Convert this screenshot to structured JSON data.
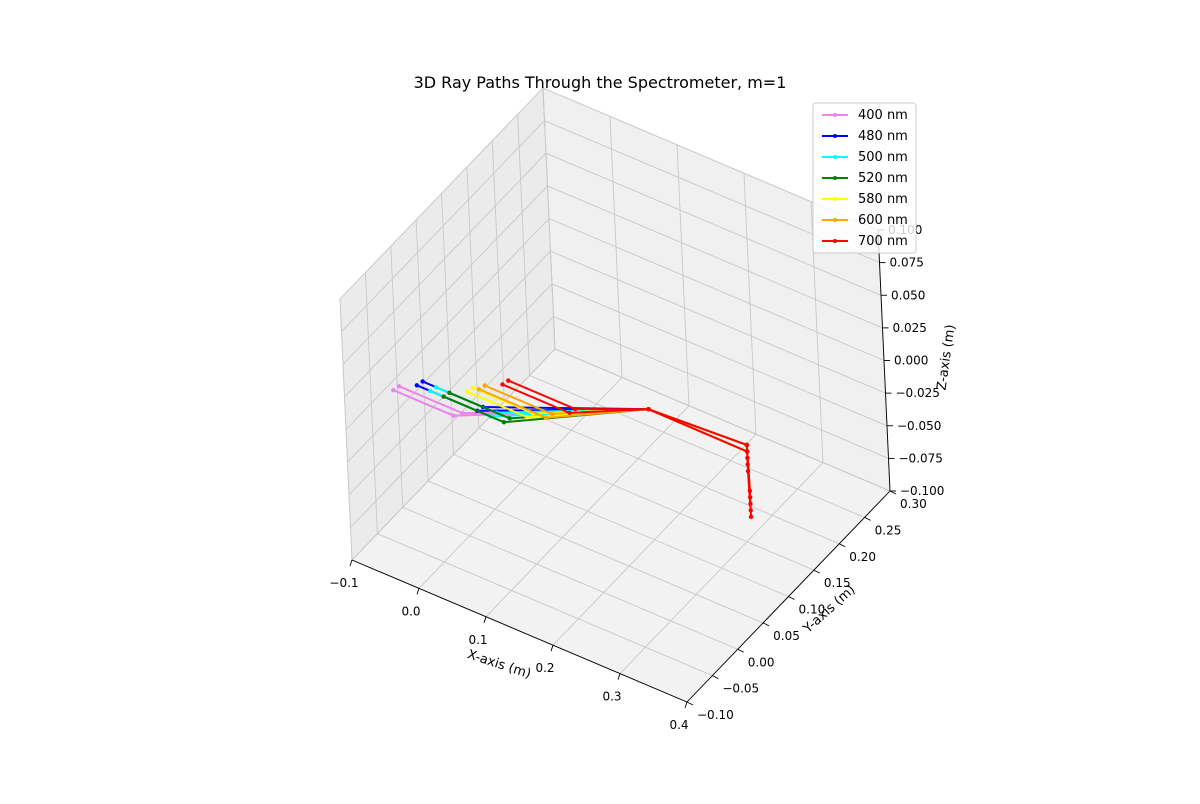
{
  "chart_data": {
    "type": "line",
    "title": "3D Ray Paths Through the Spectrometer, m=1",
    "xlabel": "X-axis (m)",
    "ylabel": "Y-axis (m)",
    "zlabel": "Z-axis (m)",
    "xlim": [
      -0.1,
      0.4
    ],
    "ylim": [
      -0.1,
      0.3
    ],
    "zlim": [
      -0.1,
      0.1
    ],
    "x_ticks": [
      "−0.1",
      "0.0",
      "0.1",
      "0.2",
      "0.3",
      "0.4"
    ],
    "y_ticks": [
      "−0.10",
      "−0.05",
      "0.00",
      "0.05",
      "0.10",
      "0.15",
      "0.20",
      "0.25",
      "0.30"
    ],
    "z_ticks": [
      "−0.100",
      "−0.075",
      "−0.050",
      "−0.025",
      "0.000",
      "0.025",
      "0.050",
      "0.075",
      "0.100"
    ],
    "grid": true,
    "legend_position": "top-right",
    "series": [
      {
        "name": "400 nm",
        "color": "#ee82ee",
        "rays": [
          {
            "x": [
              -0.09,
              0.0,
              0.2,
              0.25
            ],
            "y": [
              -0.02,
              -0.02,
              0.1,
              0.22
            ],
            "z": [
              0.0,
              0.0,
              0.0,
              -0.07
            ]
          },
          {
            "x": [
              -0.085,
              0.01,
              0.2,
              0.25
            ],
            "y": [
              -0.015,
              -0.015,
              0.1,
              0.22
            ],
            "z": [
              0.002,
              0.002,
              0.0,
              -0.065
            ]
          }
        ]
      },
      {
        "name": "480 nm",
        "color": "#0000ff",
        "rays": [
          {
            "x": [
              -0.07,
              0.02,
              0.2,
              0.25
            ],
            "y": [
              0.0,
              0.0,
              0.1,
              0.22
            ],
            "z": [
              0.0,
              0.0,
              0.0,
              -0.07
            ]
          },
          {
            "x": [
              -0.065,
              0.025,
              0.2,
              0.25
            ],
            "y": [
              0.005,
              0.005,
              0.1,
              0.22
            ],
            "z": [
              0.002,
              0.002,
              0.0,
              -0.065
            ]
          }
        ]
      },
      {
        "name": "500 nm",
        "color": "#00ffff",
        "rays": [
          {
            "x": [
              -0.05,
              0.04,
              0.2,
              0.25
            ],
            "y": [
              0.0,
              0.0,
              0.1,
              0.22
            ],
            "z": [
              0.0,
              0.0,
              0.0,
              -0.07
            ]
          },
          {
            "x": [
              -0.045,
              0.045,
              0.2,
              0.25
            ],
            "y": [
              0.005,
              0.005,
              0.1,
              0.22
            ],
            "z": [
              0.002,
              0.002,
              0.0,
              -0.065
            ]
          }
        ]
      },
      {
        "name": "520 nm",
        "color": "#008000",
        "rays": [
          {
            "x": [
              -0.03,
              0.06,
              0.2,
              0.25
            ],
            "y": [
              0.0,
              0.0,
              0.1,
              0.22
            ],
            "z": [
              0.0,
              0.0,
              0.0,
              -0.07
            ]
          },
          {
            "x": [
              -0.025,
              0.065,
              0.2,
              0.25
            ],
            "y": [
              0.005,
              0.005,
              0.1,
              0.22
            ],
            "z": [
              0.002,
              0.002,
              0.0,
              -0.065
            ]
          }
        ]
      },
      {
        "name": "580 nm",
        "color": "#ffff00",
        "rays": [
          {
            "x": [
              -0.01,
              0.08,
              0.2,
              0.25
            ],
            "y": [
              0.02,
              0.02,
              0.1,
              0.22
            ],
            "z": [
              0.0,
              0.0,
              0.0,
              -0.07
            ]
          },
          {
            "x": [
              -0.005,
              0.085,
              0.2,
              0.25
            ],
            "y": [
              0.025,
              0.025,
              0.1,
              0.22
            ],
            "z": [
              0.002,
              0.002,
              0.0,
              -0.065
            ]
          }
        ]
      },
      {
        "name": "600 nm",
        "color": "#ffa500",
        "rays": [
          {
            "x": [
              0.0,
              0.1,
              0.2,
              0.25
            ],
            "y": [
              0.03,
              0.03,
              0.1,
              0.22
            ],
            "z": [
              0.0,
              0.0,
              0.0,
              -0.07
            ]
          },
          {
            "x": [
              0.005,
              0.105,
              0.2,
              0.25
            ],
            "y": [
              0.035,
              0.035,
              0.1,
              0.22
            ],
            "z": [
              0.002,
              0.002,
              0.0,
              -0.065
            ]
          }
        ]
      },
      {
        "name": "700 nm",
        "color": "#ff0000",
        "rays": [
          {
            "x": [
              0.02,
              0.12,
              0.2,
              0.25
            ],
            "y": [
              0.05,
              0.05,
              0.1,
              0.22
            ],
            "z": [
              0.0,
              0.0,
              0.0,
              -0.07
            ]
          },
          {
            "x": [
              0.025,
              0.125,
              0.2,
              0.25
            ],
            "y": [
              0.055,
              0.055,
              0.1,
              0.22
            ],
            "z": [
              0.002,
              0.002,
              0.0,
              -0.065
            ]
          }
        ]
      }
    ],
    "detector_rays": {
      "color": "#ff0000",
      "x": [
        0.25,
        0.3
      ],
      "y_start": 0.22,
      "y_end": 0.16,
      "z_values": [
        -0.065,
        -0.07,
        -0.075,
        -0.08,
        -0.085
      ]
    }
  }
}
